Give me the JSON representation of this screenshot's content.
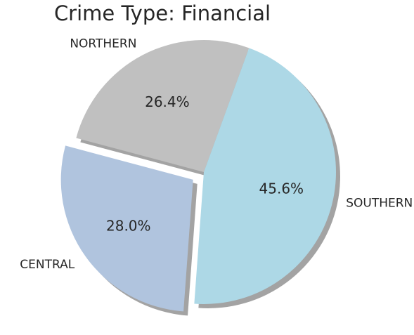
{
  "chart_data": {
    "type": "pie",
    "title": "Crime Type: Financial",
    "slices": [
      {
        "label": "NORTHERN",
        "value": 26.4,
        "pct_label": "26.4%",
        "color": "#c0c0c0",
        "explode": false
      },
      {
        "label": "CENTRAL",
        "value": 28.0,
        "pct_label": "28.0%",
        "color": "#b0c4de",
        "explode": true
      },
      {
        "label": "SOUTHERN",
        "value": 45.6,
        "pct_label": "45.6%",
        "color": "#add8e6",
        "explode": false
      }
    ],
    "shadow": true,
    "legend": "none"
  }
}
